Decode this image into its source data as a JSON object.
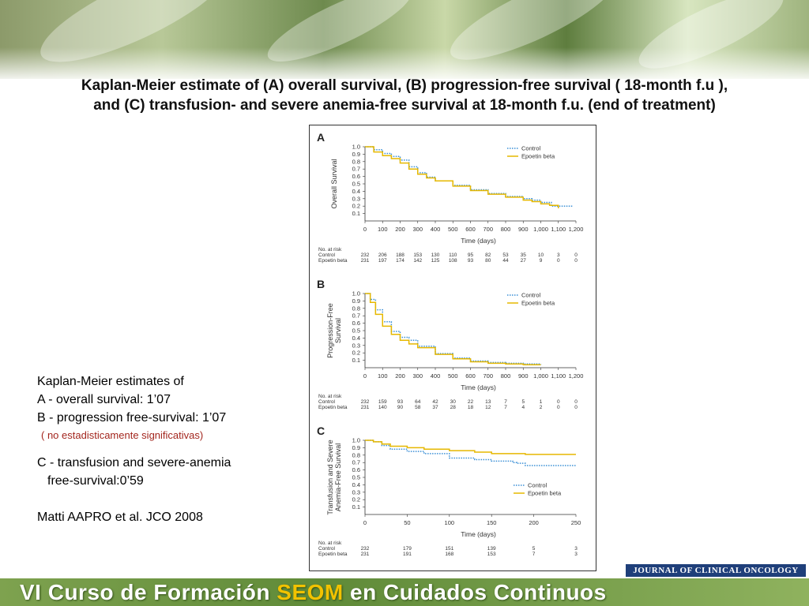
{
  "title": {
    "line1": "Kaplan-Meier estimate of (A) overall survival, (B) progression-free survival ( 18-month f.u ),",
    "line2": "and (C) transfusion- and severe anemia-free survival at 18-month f.u. (end of treatment)"
  },
  "side_text": {
    "l1": "Kaplan-Meier estimates of",
    "l2": "A - overall survival: 1’07",
    "l3": "B - progression free-survival: 1’07",
    "l4": "( no estadisticamente significativas)",
    "l5": "C - transfusion and severe-anemia",
    "l6": "free-survival:0’59",
    "l7": "Matti AAPRO et al. JCO 2008"
  },
  "journal_label": "JOURNAL OF CLINICAL ONCOLOGY",
  "footer": {
    "part1": "VI Curso de Formación ",
    "part2": "SEOM",
    "part3": " en Cuidados Continuos"
  },
  "colors": {
    "control": "#3a8fd6",
    "epoetin": "#e6b800",
    "highlight": "#f2c200",
    "journal_bg": "#1f3f7a"
  },
  "chart_data": [
    {
      "panel": "A",
      "type": "line",
      "ylabel": "Overall Survival",
      "xlabel": "Time (days)",
      "xlim": [
        0,
        1200
      ],
      "ylim": [
        0,
        1.0
      ],
      "xticks": [
        "0",
        "100",
        "200",
        "300",
        "400",
        "500",
        "600",
        "700",
        "800",
        "900",
        "1,000",
        "1,100",
        "1,200"
      ],
      "yticks": [
        "0.1",
        "0.2",
        "0.3",
        "0.4",
        "0.5",
        "0.6",
        "0.7",
        "0.8",
        "0.9",
        "1.0"
      ],
      "legend": [
        "Control",
        "Epoetin beta"
      ],
      "series": [
        {
          "name": "Control",
          "style": "dotted",
          "x": [
            0,
            50,
            100,
            150,
            200,
            250,
            300,
            350,
            400,
            500,
            600,
            700,
            800,
            900,
            950,
            1000,
            1060,
            1100,
            1180
          ],
          "y": [
            1.0,
            0.96,
            0.91,
            0.87,
            0.82,
            0.73,
            0.65,
            0.59,
            0.54,
            0.48,
            0.42,
            0.37,
            0.33,
            0.3,
            0.28,
            0.25,
            0.2,
            0.2,
            0.2
          ]
        },
        {
          "name": "Epoetin beta",
          "style": "solid",
          "x": [
            0,
            50,
            100,
            150,
            200,
            250,
            300,
            350,
            400,
            500,
            600,
            700,
            800,
            900,
            950,
            1000,
            1050,
            1100
          ],
          "y": [
            1.0,
            0.93,
            0.88,
            0.84,
            0.78,
            0.7,
            0.63,
            0.58,
            0.54,
            0.47,
            0.41,
            0.36,
            0.32,
            0.28,
            0.26,
            0.23,
            0.21,
            0.17
          ]
        }
      ],
      "at_risk": {
        "label": "No. at risk",
        "rows": [
          {
            "name": "Control",
            "values": [
              "232",
              "206",
              "188",
              "153",
              "130",
              "110",
              "95",
              "82",
              "53",
              "35",
              "10",
              "3",
              "0"
            ]
          },
          {
            "name": "Epoetin beta",
            "values": [
              "231",
              "197",
              "174",
              "142",
              "125",
              "108",
              "93",
              "80",
              "44",
              "27",
              "9",
              "0",
              "0"
            ]
          }
        ]
      }
    },
    {
      "panel": "B",
      "type": "line",
      "ylabel": "Progression-Free Survival",
      "xlabel": "Time (days)",
      "xlim": [
        0,
        1200
      ],
      "ylim": [
        0,
        1.0
      ],
      "xticks": [
        "0",
        "100",
        "200",
        "300",
        "400",
        "500",
        "600",
        "700",
        "800",
        "900",
        "1,000",
        "1,100",
        "1,200"
      ],
      "yticks": [
        "0.1",
        "0.2",
        "0.3",
        "0.4",
        "0.5",
        "0.6",
        "0.7",
        "0.8",
        "0.9",
        "1.0"
      ],
      "legend": [
        "Control",
        "Epoetin beta"
      ],
      "series": [
        {
          "name": "Control",
          "style": "dotted",
          "x": [
            0,
            30,
            60,
            100,
            150,
            200,
            250,
            300,
            400,
            500,
            600,
            700,
            800,
            900,
            1000
          ],
          "y": [
            1.0,
            0.92,
            0.78,
            0.62,
            0.49,
            0.41,
            0.37,
            0.29,
            0.19,
            0.13,
            0.09,
            0.07,
            0.06,
            0.05,
            0.04
          ]
        },
        {
          "name": "Epoetin beta",
          "style": "solid",
          "x": [
            0,
            30,
            60,
            100,
            150,
            200,
            250,
            300,
            400,
            500,
            600,
            700,
            800,
            900,
            1000
          ],
          "y": [
            1.0,
            0.88,
            0.72,
            0.56,
            0.45,
            0.37,
            0.32,
            0.27,
            0.18,
            0.12,
            0.08,
            0.06,
            0.05,
            0.04,
            0.04
          ]
        }
      ],
      "at_risk": {
        "label": "No. at risk",
        "rows": [
          {
            "name": "Control",
            "values": [
              "232",
              "159",
              "93",
              "64",
              "42",
              "30",
              "22",
              "13",
              "7",
              "5",
              "1",
              "0",
              "0"
            ]
          },
          {
            "name": "Epoetin beta",
            "values": [
              "231",
              "140",
              "90",
              "58",
              "37",
              "28",
              "18",
              "12",
              "7",
              "4",
              "2",
              "0",
              "0"
            ]
          }
        ]
      }
    },
    {
      "panel": "C",
      "type": "line",
      "ylabel": "Transfusion and Severe Anemia-Free Survival",
      "xlabel": "Time (days)",
      "xlim": [
        0,
        250
      ],
      "ylim": [
        0,
        1.0
      ],
      "xticks": [
        "0",
        "50",
        "100",
        "150",
        "200",
        "250"
      ],
      "yticks": [
        "0.1",
        "0.2",
        "0.3",
        "0.4",
        "0.5",
        "0.6",
        "0.7",
        "0.8",
        "0.9",
        "1.0"
      ],
      "legend": [
        "Control",
        "Epoetin beta"
      ],
      "series": [
        {
          "name": "Control",
          "style": "dotted",
          "x": [
            0,
            10,
            20,
            30,
            50,
            70,
            100,
            130,
            150,
            175,
            180,
            190,
            250
          ],
          "y": [
            1.0,
            0.98,
            0.93,
            0.88,
            0.85,
            0.82,
            0.76,
            0.74,
            0.72,
            0.7,
            0.69,
            0.66,
            0.66
          ]
        },
        {
          "name": "Epoetin beta",
          "style": "solid",
          "x": [
            0,
            10,
            20,
            30,
            50,
            70,
            100,
            130,
            150,
            190,
            250
          ],
          "y": [
            1.0,
            0.98,
            0.95,
            0.92,
            0.9,
            0.88,
            0.86,
            0.84,
            0.82,
            0.81,
            0.81
          ]
        }
      ],
      "at_risk": {
        "label": "No. at risk",
        "rows": [
          {
            "name": "Control",
            "values": [
              "232",
              "179",
              "151",
              "139",
              "5",
              "3"
            ]
          },
          {
            "name": "Epoetin beta",
            "values": [
              "231",
              "191",
              "168",
              "153",
              "7",
              "3"
            ]
          }
        ]
      }
    }
  ]
}
